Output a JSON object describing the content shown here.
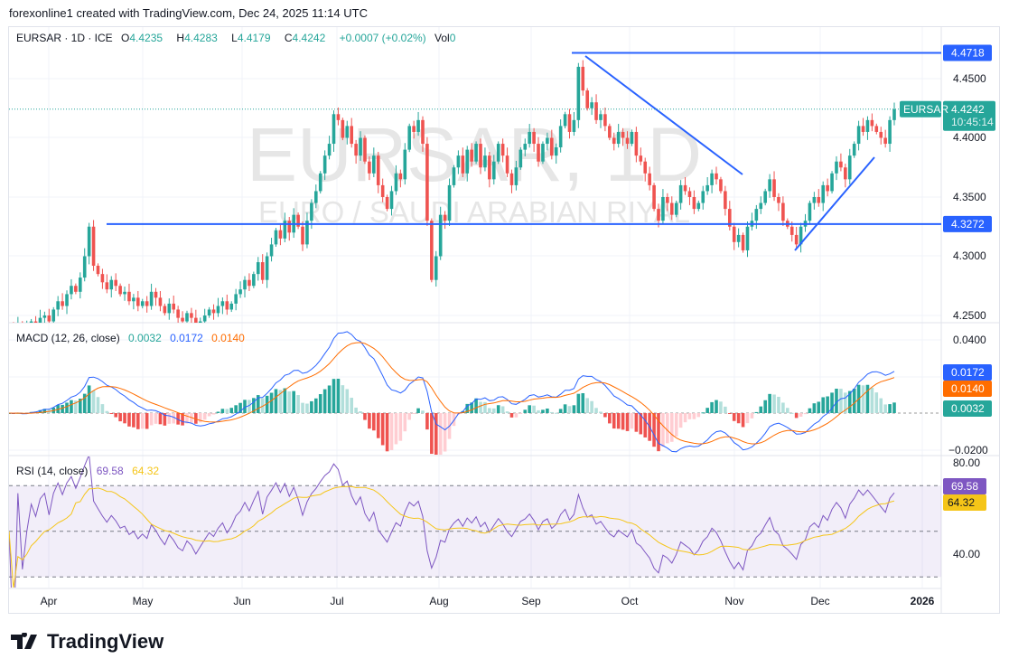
{
  "credit": "forexonline1 created with TradingView.com, Dec 24, 2025 11:14 UTC",
  "legend": {
    "symbol": "EURSAR · 1D · ICE",
    "o_label": "O",
    "o": "4.4235",
    "h_label": "H",
    "h": "4.4283",
    "l_label": "L",
    "l": "4.4179",
    "c_label": "C",
    "c": "4.4242",
    "change": "+0.0007 (+0.02%)",
    "vol_label": "Vol",
    "vol": "0"
  },
  "watermark": {
    "title": "EURSAR, 1D",
    "subtitle": "EURO / SAUDI ARABIAN RIYAL"
  },
  "price_axis": [
    "4.4500",
    "4.4000",
    "4.3500",
    "4.3000",
    "4.2500"
  ],
  "price_tags": {
    "resistance": "4.4718",
    "support": "4.3272",
    "last": "4.4242",
    "countdown": "10:45:14",
    "symbol": "EURSAR"
  },
  "macd": {
    "label": "MACD (12, 26, close)",
    "hist": "0.0032",
    "macd": "0.0172",
    "signal": "0.0140",
    "axis": [
      "0.0400",
      "−0.0200"
    ]
  },
  "rsi": {
    "label": "RSI (14, close)",
    "rsi": "69.58",
    "ma": "64.32",
    "axis": [
      "80.00",
      "40.00"
    ]
  },
  "time_axis": [
    "Apr",
    "May",
    "Jun",
    "Jul",
    "Aug",
    "Sep",
    "Oct",
    "Nov",
    "Dec",
    "2026"
  ],
  "colors": {
    "up": "#26a69a",
    "down": "#ef5350",
    "line": "#2962ff",
    "signal": "#ff6d00",
    "rsi": "#7e57c2",
    "rsi_ma": "#f5c518"
  },
  "brand": "TradingView",
  "chart_data": {
    "type": "candlestick",
    "symbol": "EURSAR",
    "interval": "1D",
    "x_start": "2025-03-20",
    "x_end": "2025-12-24",
    "ylim": [
      4.245,
      4.48
    ],
    "drawings": {
      "horizontal_levels": [
        4.4718,
        4.3272
      ]
    },
    "closes": [
      4.24,
      4.238,
      4.242,
      4.236,
      4.24,
      4.245,
      4.243,
      4.248,
      4.25,
      4.245,
      4.255,
      4.262,
      4.258,
      4.268,
      4.275,
      4.27,
      4.282,
      4.3,
      4.325,
      4.292,
      4.285,
      4.278,
      4.272,
      4.28,
      4.275,
      4.268,
      4.27,
      4.262,
      4.265,
      4.258,
      4.262,
      4.258,
      4.27,
      4.265,
      4.258,
      4.252,
      4.26,
      4.255,
      4.248,
      4.245,
      4.252,
      4.248,
      4.24,
      4.245,
      4.25,
      4.255,
      4.252,
      4.258,
      4.262,
      4.255,
      4.26,
      4.268,
      4.272,
      4.28,
      4.275,
      4.285,
      4.295,
      4.28,
      4.3,
      4.31,
      4.322,
      4.315,
      4.33,
      4.32,
      4.335,
      4.325,
      4.31,
      4.33,
      4.345,
      4.355,
      4.37,
      4.385,
      4.395,
      4.42,
      4.415,
      4.4,
      4.41,
      4.395,
      4.385,
      4.4,
      4.38,
      4.37,
      4.385,
      4.36,
      4.35,
      4.34,
      4.355,
      4.37,
      4.365,
      4.39,
      4.41,
      4.405,
      4.415,
      4.395,
      4.33,
      4.28,
      4.3,
      4.335,
      4.33,
      4.36,
      4.375,
      4.385,
      4.37,
      4.39,
      4.38,
      4.395,
      4.375,
      4.385,
      4.365,
      4.38,
      4.395,
      4.385,
      4.37,
      4.36,
      4.375,
      4.39,
      4.395,
      4.405,
      4.395,
      4.38,
      4.395,
      4.4,
      4.385,
      4.392,
      4.41,
      4.42,
      4.405,
      4.415,
      4.46,
      4.44,
      4.425,
      4.43,
      4.415,
      4.42,
      4.41,
      4.4,
      4.395,
      4.405,
      4.4,
      4.395,
      4.405,
      4.385,
      4.38,
      4.37,
      4.36,
      4.34,
      4.33,
      4.35,
      4.345,
      4.335,
      4.345,
      4.36,
      4.355,
      4.35,
      4.34,
      4.345,
      4.355,
      4.36,
      4.37,
      4.365,
      4.355,
      4.34,
      4.325,
      4.312,
      4.318,
      4.305,
      4.325,
      4.33,
      4.34,
      4.345,
      4.355,
      4.365,
      4.35,
      4.345,
      4.33,
      4.325,
      4.318,
      4.31,
      4.325,
      4.33,
      4.345,
      4.35,
      4.345,
      4.36,
      4.355,
      4.37,
      4.38,
      4.375,
      4.365,
      4.385,
      4.395,
      4.41,
      4.405,
      4.415,
      4.41,
      4.405,
      4.4,
      4.395,
      4.415,
      4.4242
    ]
  }
}
